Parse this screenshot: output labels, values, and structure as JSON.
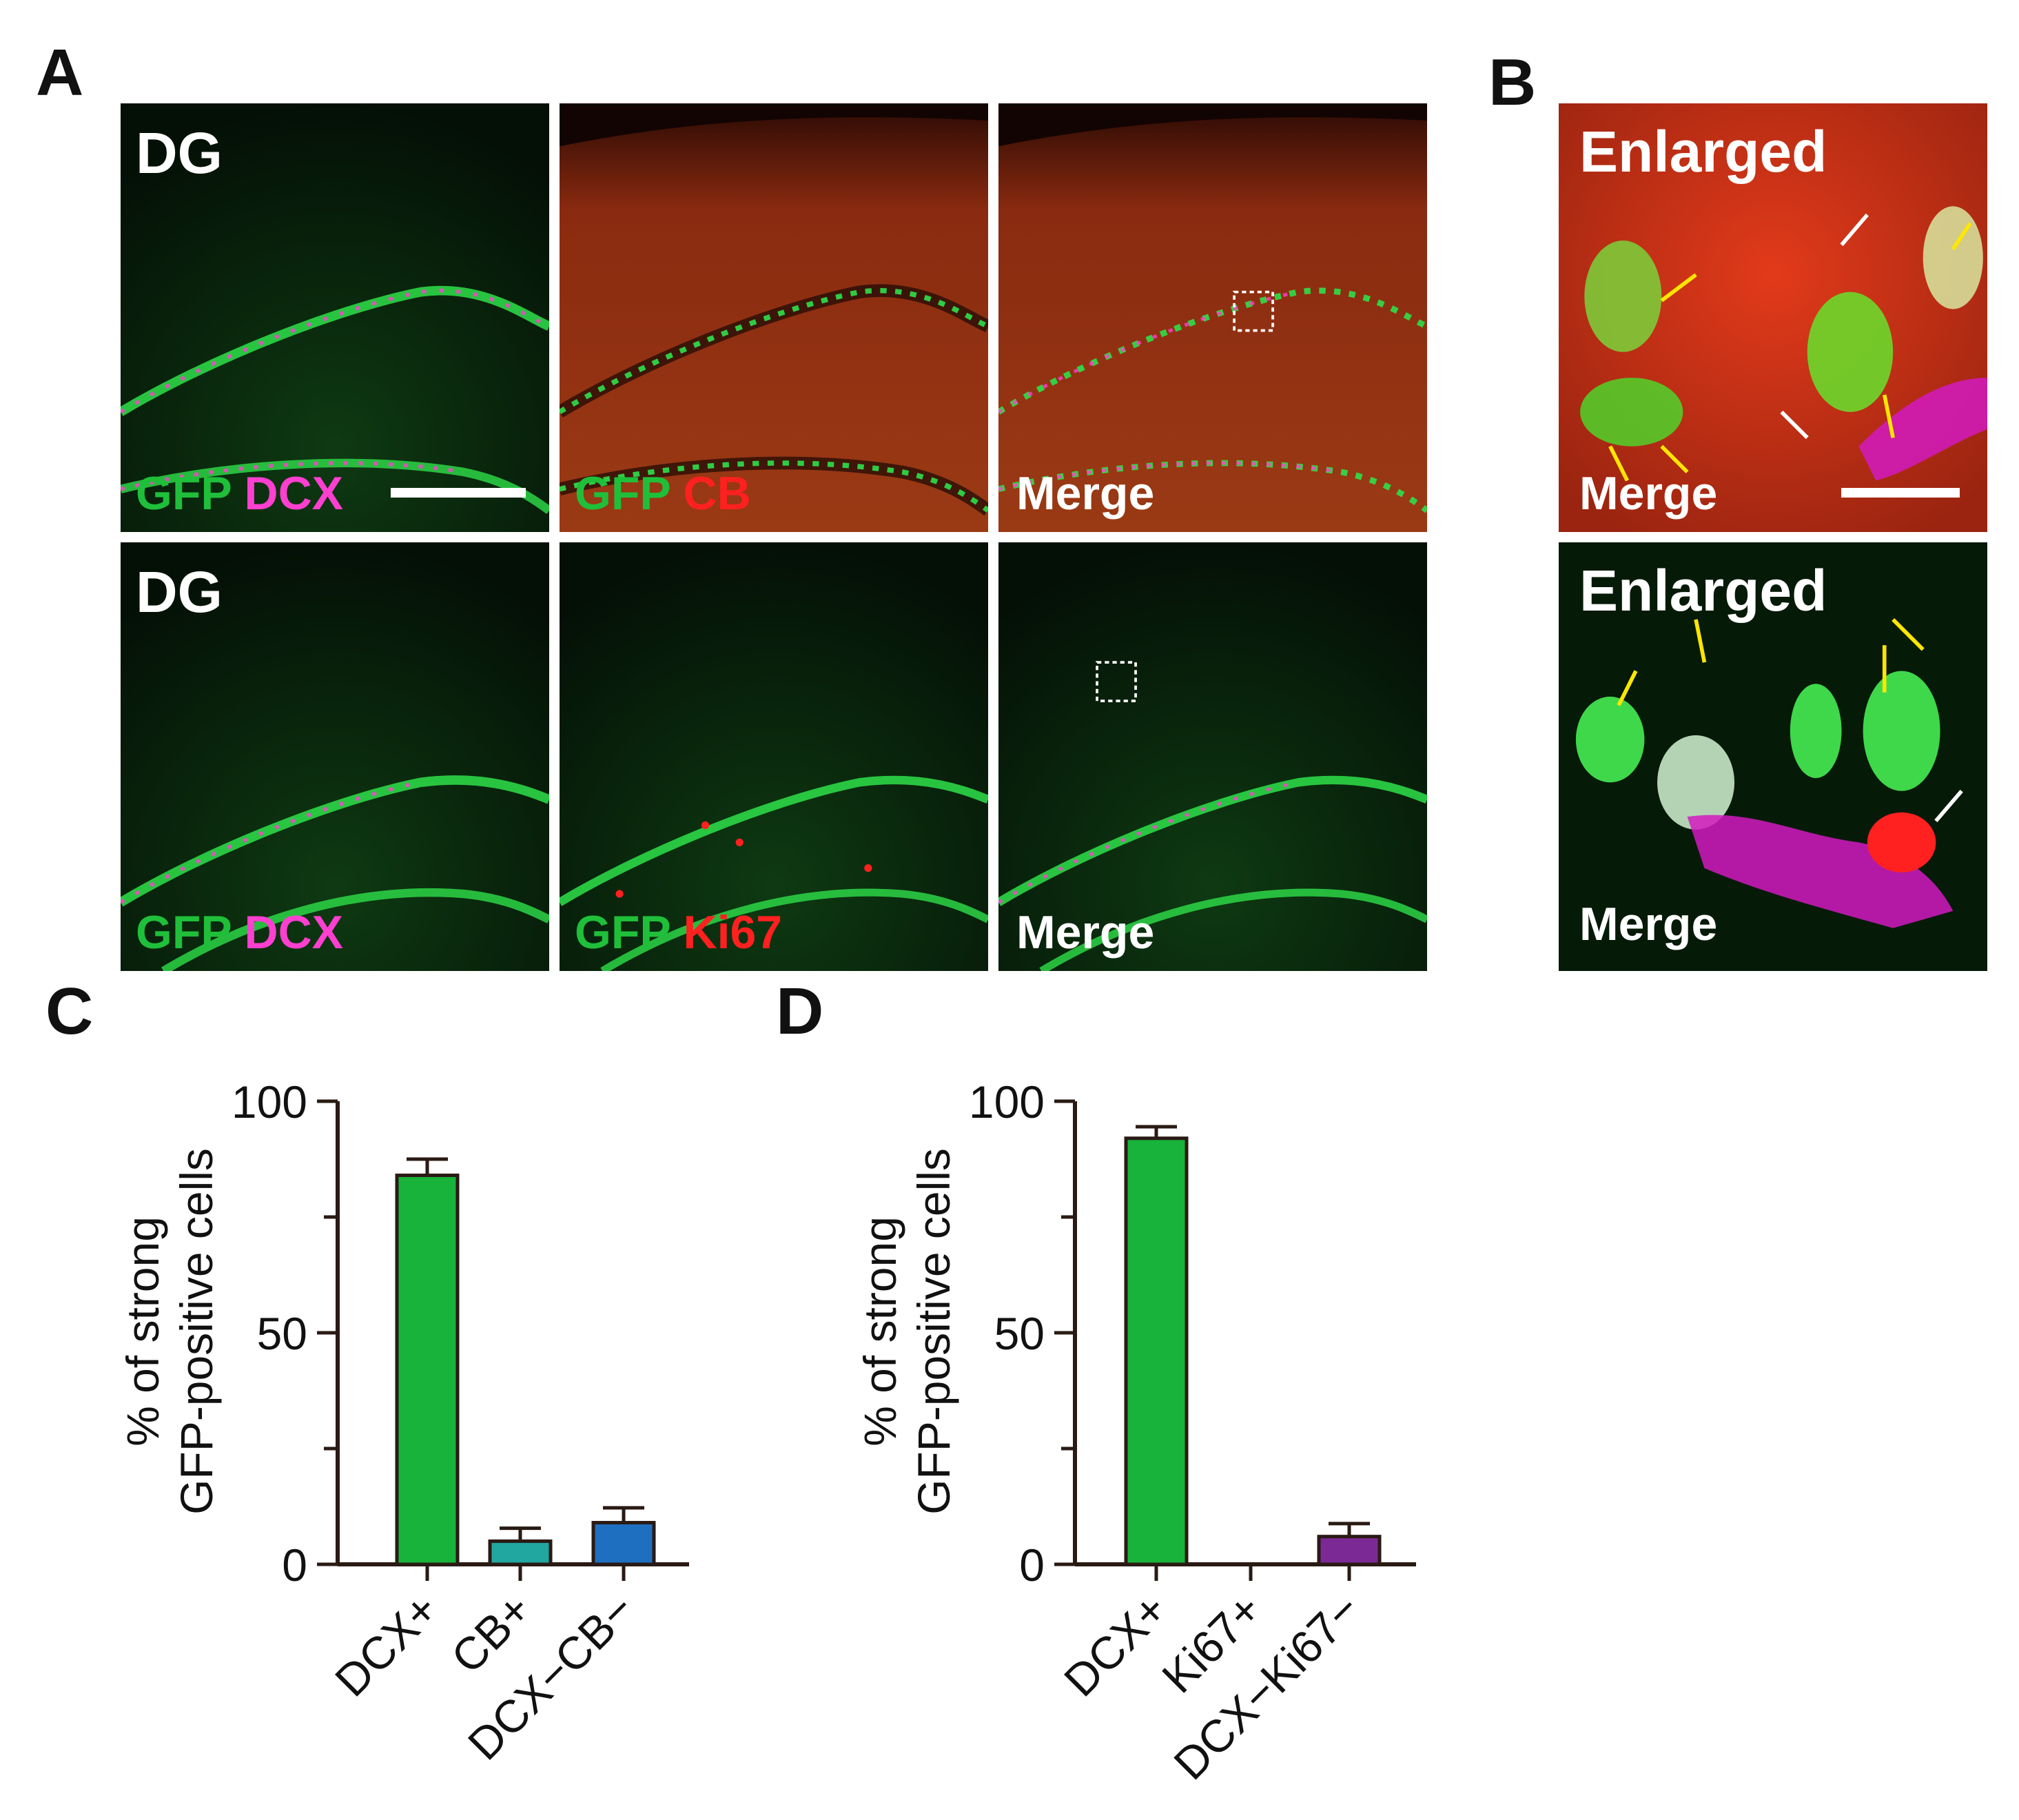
{
  "panel_letters": {
    "a": "A",
    "b": "B",
    "c": "C",
    "d": "D"
  },
  "panel_a": {
    "row1": {
      "region": "DG",
      "p1": {
        "ch1": "GFP",
        "ch2": "DCX"
      },
      "p2": {
        "ch1": "GFP",
        "ch2": "CB"
      },
      "p3": {
        "label": "Merge"
      }
    },
    "row2": {
      "region": "DG",
      "p1": {
        "ch1": "GFP",
        "ch2": "DCX"
      },
      "p2": {
        "ch1": "GFP",
        "ch2": "Ki67"
      },
      "p3": {
        "label": "Merge"
      }
    }
  },
  "panel_b": {
    "top": {
      "title": "Enlarged",
      "label": "Merge"
    },
    "bottom": {
      "title": "Enlarged",
      "label": "Merge"
    }
  },
  "colors": {
    "gfp": "#1fbf3a",
    "dcx": "#ff3fd0",
    "cb": "#ff2020",
    "ki67": "#ff2020",
    "bar_dcx": "#17b33a",
    "bar_cb": "#21a6a0",
    "bar_dcx_cb": "#1f6fc0",
    "bar_dcx_ki67": "#7b2a95"
  },
  "chart_data": [
    {
      "type": "bar",
      "ylabel": [
        "% of strong",
        "GFP-positive cells"
      ],
      "categories": [
        "DCX+",
        "CB+",
        "DCX−CB−"
      ],
      "values": [
        84,
        5,
        9
      ],
      "errors": [
        3.5,
        2.8,
        3.2
      ],
      "ylim": [
        0,
        100
      ],
      "yticks": [
        0,
        50,
        100
      ],
      "bar_colors": [
        "#17b33a",
        "#21a6a0",
        "#1f6fc0"
      ]
    },
    {
      "type": "bar",
      "ylabel": [
        "% of strong",
        "GFP-positive cells"
      ],
      "categories": [
        "DCX+",
        "Ki67+",
        "DCX−Ki67−"
      ],
      "values": [
        92,
        0,
        6
      ],
      "errors": [
        2.5,
        0,
        2.8
      ],
      "ylim": [
        0,
        100
      ],
      "yticks": [
        0,
        50,
        100
      ],
      "bar_colors": [
        "#17b33a",
        "#7b2a95",
        "#7b2a95"
      ]
    }
  ]
}
